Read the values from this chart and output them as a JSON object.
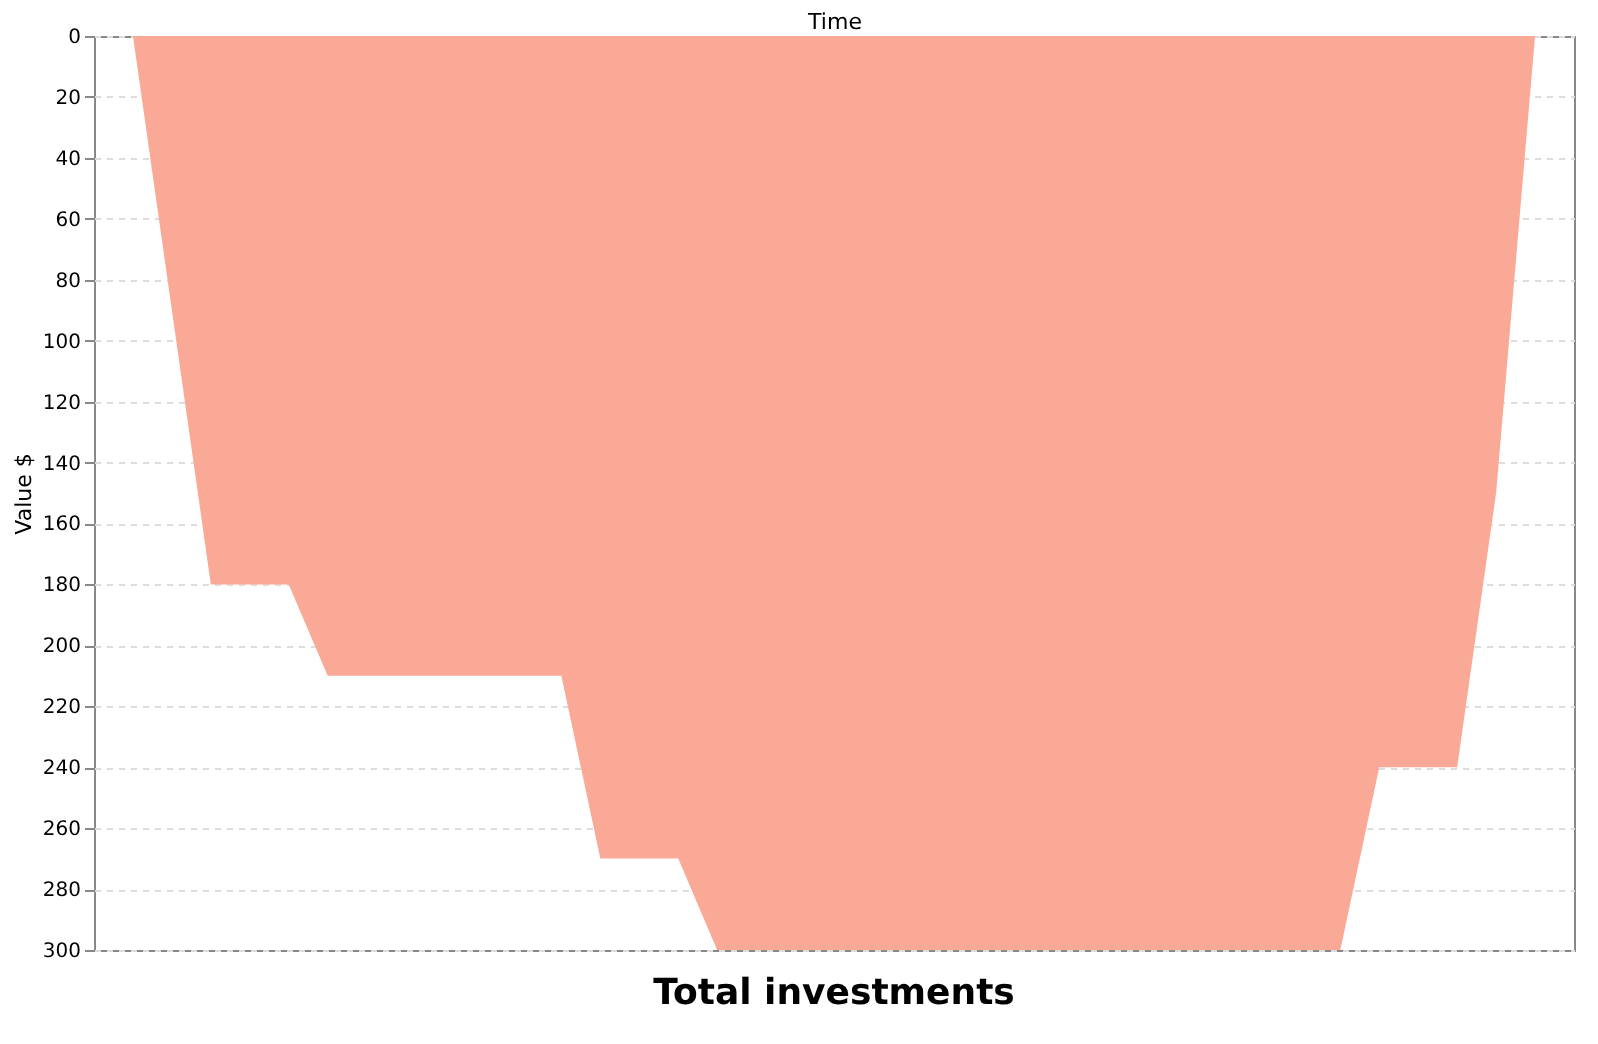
{
  "chart_data": {
    "type": "area",
    "title": "Total investments",
    "xlabel": "Time",
    "ylabel": "Value $",
    "categories": [
      null,
      null,
      null,
      null,
      null,
      null,
      null,
      null,
      null,
      null,
      null,
      null,
      null,
      null,
      null,
      null,
      null,
      null,
      null,
      null,
      null,
      null,
      null,
      null,
      null,
      null,
      null,
      null,
      null,
      null,
      null,
      null,
      null,
      null,
      null,
      null,
      null
    ],
    "values": [
      0,
      90,
      180,
      180,
      180,
      210,
      210,
      210,
      210,
      210,
      210,
      210,
      270,
      270,
      270,
      300,
      300,
      300,
      300,
      300,
      300,
      300,
      300,
      300,
      300,
      300,
      300,
      300,
      300,
      300,
      300,
      300,
      240,
      240,
      240,
      150,
      0
    ],
    "color": "#f9a996",
    "ylim": [
      300,
      0
    ],
    "yticks": [
      0,
      20,
      40,
      60,
      80,
      100,
      120,
      140,
      160,
      180,
      200,
      220,
      240,
      260,
      280,
      300
    ],
    "grid": "y",
    "tick_labels": "y"
  }
}
